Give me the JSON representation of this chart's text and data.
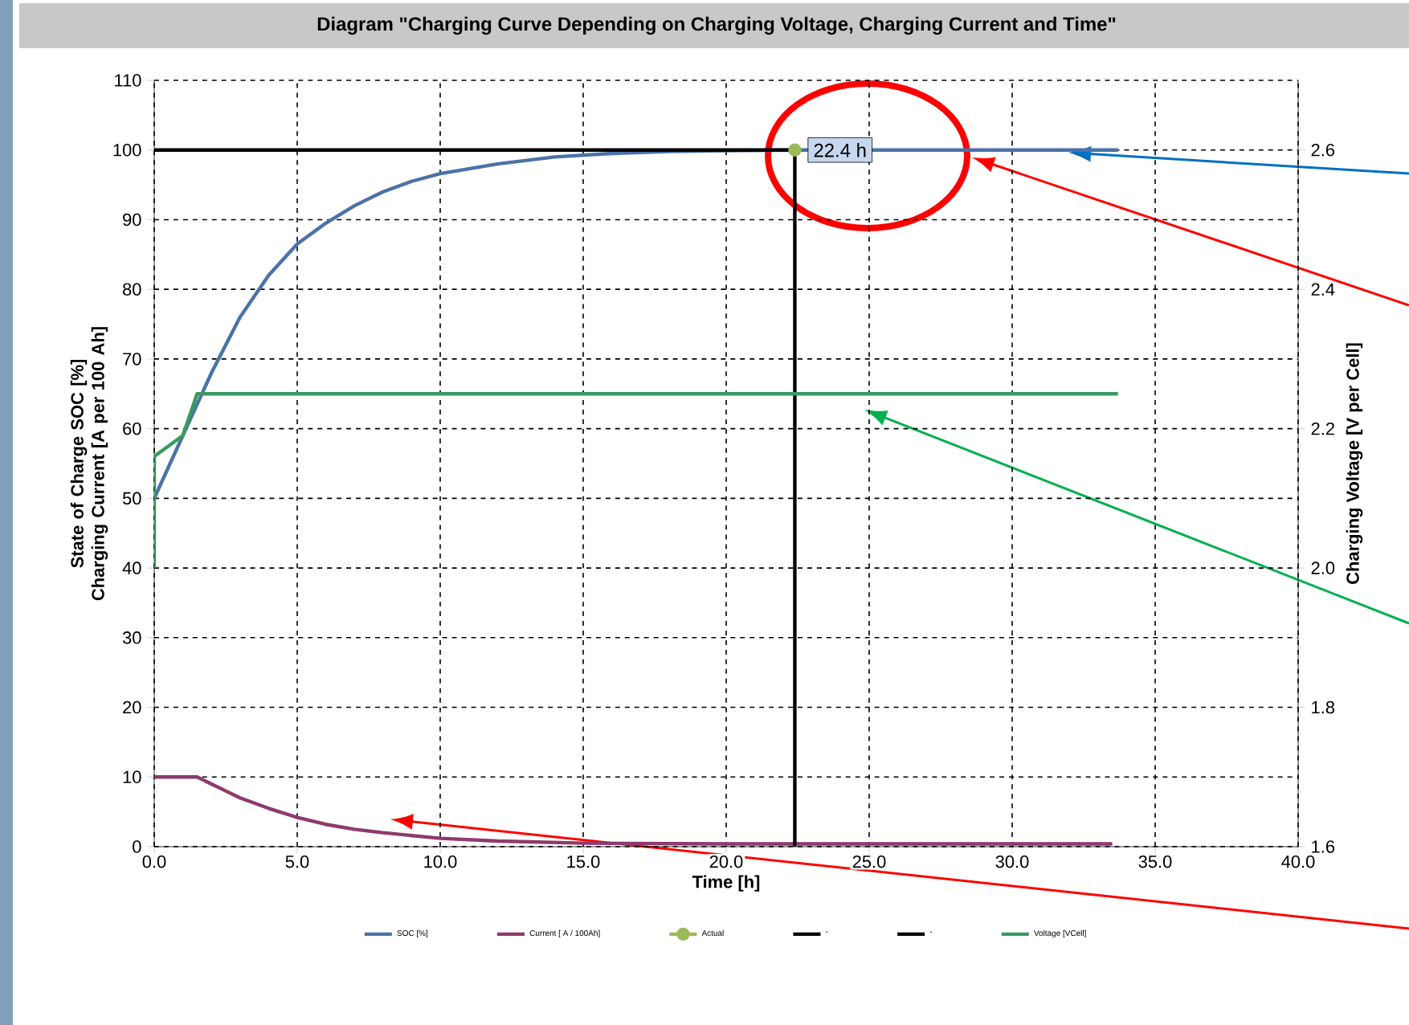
{
  "chart_data": {
    "type": "line",
    "title": "Diagram \"Charging Curve Depending on Charging Voltage, Charging Current and Time\"",
    "xlabel": "Time [h]",
    "ylabel": "State of Charge SOC [%] Charging Current [A per 100 Ah]",
    "y2label": "Charging Voltage [V per Cell]",
    "xlim": [
      0,
      40
    ],
    "xticks": [
      {
        "value": 0,
        "label": "0.0"
      },
      {
        "value": 5,
        "label": "5.0"
      },
      {
        "value": 10,
        "label": "10.0"
      },
      {
        "value": 15,
        "label": "15.0"
      },
      {
        "value": 20,
        "label": "20.0"
      },
      {
        "value": 25,
        "label": "25.0"
      },
      {
        "value": 30,
        "label": "30.0"
      },
      {
        "value": 35,
        "label": "35.0"
      },
      {
        "value": 40,
        "label": "40.0"
      }
    ],
    "ylim": [
      0,
      110
    ],
    "yticks": [
      0,
      10,
      20,
      30,
      40,
      50,
      60,
      70,
      80,
      90,
      100,
      110
    ],
    "y2lim": [
      1.6,
      2.7
    ],
    "y2ticks": [
      1.6,
      1.8,
      {
        "value": 2,
        "label": "2.0"
      },
      2.2,
      2.4,
      2.6
    ],
    "grid": true,
    "legend": "bottom",
    "line_style": "solid",
    "marker": "none",
    "series": [
      {
        "name": "SOC [%]",
        "color": "#4a72a8",
        "x": [
          0,
          1,
          2,
          3,
          4,
          5,
          6,
          7,
          8,
          9,
          10,
          12,
          14,
          16,
          18,
          20,
          22.4,
          33.7
        ],
        "values": [
          50,
          59,
          68,
          76,
          82,
          86.5,
          89.5,
          92,
          94,
          95.5,
          96.6,
          98,
          99,
          99.5,
          99.8,
          99.9,
          100,
          100
        ]
      },
      {
        "name": "Current [ A / 100Ah]",
        "color": "#8e3a6e",
        "x": [
          0,
          1.5,
          2.5,
          3,
          4,
          5,
          6,
          7,
          8,
          10,
          12,
          15,
          20,
          33.5
        ],
        "values": [
          10,
          10,
          8,
          7,
          5.5,
          4.2,
          3.2,
          2.5,
          2,
          1.2,
          0.8,
          0.5,
          0.4,
          0.4
        ]
      },
      {
        "name": "Actual",
        "color": "#9bbb59",
        "marker": "circle",
        "x": [
          22.4
        ],
        "values": [
          100
        ]
      },
      {
        "name": "-",
        "color": "#000000",
        "x": [
          0,
          22.4
        ],
        "values": [
          100,
          100
        ]
      },
      {
        "name": "-",
        "color": "#000000",
        "x": [
          22.4,
          22.4
        ],
        "values": [
          0,
          100
        ]
      },
      {
        "name": "Voltage [VCell]",
        "color": "#3a9a5e",
        "axis": "y2",
        "x": [
          0,
          0,
          1,
          1.5,
          33.7
        ],
        "values": [
          2.0,
          2.16,
          2.19,
          2.25,
          2.25
        ]
      }
    ],
    "annotations": [
      {
        "text": "22.4 h",
        "x": 22.4,
        "y": 100
      }
    ]
  }
}
